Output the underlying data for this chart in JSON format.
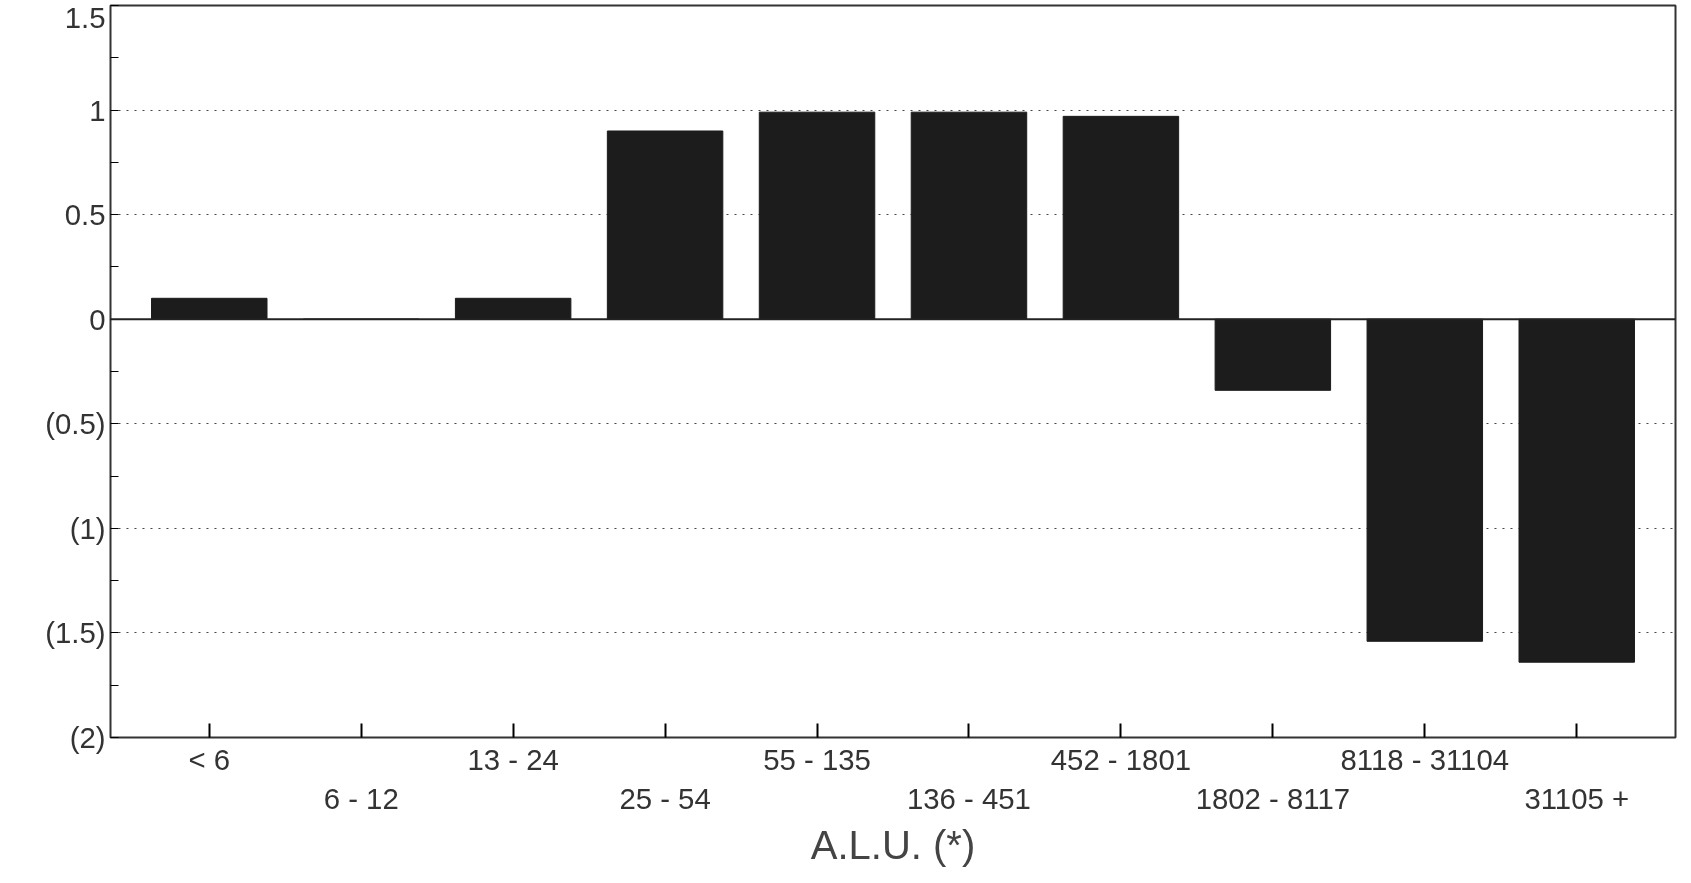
{
  "chart_data": {
    "type": "bar",
    "xlabel": "A.L.U. (*)",
    "categories": [
      "< 6",
      "6 - 12",
      "13 - 24",
      "25 - 54",
      "55 - 135",
      "136 - 451",
      "452 - 1801",
      "1802 - 8117",
      "8118 - 31104",
      "31105 +"
    ],
    "values": [
      0.1,
      0,
      0.1,
      0.9,
      0.99,
      0.99,
      0.97,
      -0.34,
      -1.54,
      -1.64
    ],
    "color": "#1c1c1c",
    "ylim": [
      -2,
      1.5
    ],
    "yticks": [
      1.5,
      1,
      0.5,
      0,
      {
        "value": -0.5,
        "label": "(0.5)"
      },
      {
        "value": -1,
        "label": "(1)"
      },
      {
        "value": -1.5,
        "label": "(1.5)"
      },
      {
        "value": -2,
        "label": "(2)"
      }
    ],
    "grid": "y"
  }
}
